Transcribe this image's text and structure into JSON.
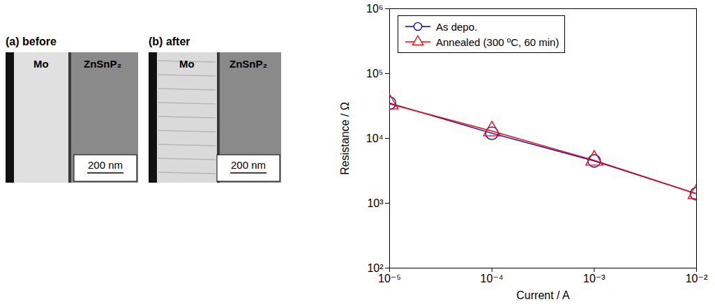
{
  "panels": [
    {
      "title": "(a) before",
      "regions": [
        "Mo",
        "ZnSnP₂"
      ],
      "scale_bar": "200 nm"
    },
    {
      "title": "(b) after",
      "regions": [
        "Mo",
        "ZnSnP₂"
      ],
      "scale_bar": "200 nm"
    }
  ],
  "chart_data": {
    "type": "line",
    "x_label": "Current / A",
    "y_label": "Resistance / Ω",
    "log": true,
    "x": [
      1e-05,
      0.0001,
      0.001,
      0.01
    ],
    "series": [
      {
        "name": "As depo.",
        "color": "#0000cc",
        "marker": "circle",
        "line_style": "solid",
        "values": [
          35000,
          12000,
          4500,
          1400
        ]
      },
      {
        "name": "Annealed (300 ºC, 60 min)",
        "color": "#ff0000",
        "marker": "triangle",
        "line_style": "solid",
        "values": [
          34000,
          13000,
          4600,
          1400
        ]
      }
    ],
    "xlim": [
      1e-05,
      0.01
    ],
    "xticks": [
      {
        "value": 1e-05,
        "label": "10⁻⁵"
      },
      {
        "value": 0.0001,
        "label": "10⁻⁴"
      },
      {
        "value": 0.001,
        "label": "10⁻³"
      },
      {
        "value": 0.01,
        "label": "10⁻²"
      }
    ],
    "ylim": [
      100,
      1000000
    ],
    "yticks": [
      {
        "value": 100,
        "label": "10²"
      },
      {
        "value": 1000,
        "label": "10³"
      },
      {
        "value": 10000,
        "label": "10⁴"
      },
      {
        "value": 100000,
        "label": "10⁵"
      },
      {
        "value": 1000000,
        "label": "10⁶"
      }
    ],
    "legend": "upper left"
  }
}
